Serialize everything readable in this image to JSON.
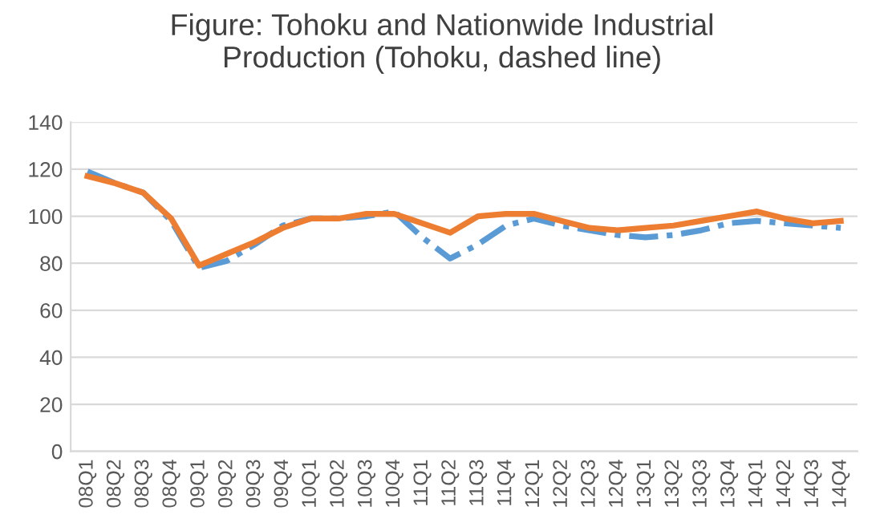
{
  "chart_data": {
    "type": "line",
    "title": "Figure: Tohoku and Nationwide Industrial\nProduction (Tohoku, dashed line)",
    "categories": [
      "08Q1",
      "08Q2",
      "08Q3",
      "08Q4",
      "09Q1",
      "09Q2",
      "09Q3",
      "09Q4",
      "10Q1",
      "10Q2",
      "10Q3",
      "10Q4",
      "11Q1",
      "11Q2",
      "11Q3",
      "11Q4",
      "12Q1",
      "12Q2",
      "12Q3",
      "12Q4",
      "13Q1",
      "13Q2",
      "13Q3",
      "13Q4",
      "14Q1",
      "14Q2",
      "14Q3",
      "14Q4"
    ],
    "series": [
      {
        "color": "#5b9bd5",
        "line_style": "dashdot",
        "values": [
          119,
          114,
          110,
          98,
          78,
          81,
          88,
          96,
          99,
          99,
          100,
          102,
          91,
          82,
          88,
          96,
          99,
          96,
          94,
          92,
          91,
          92,
          94,
          97,
          98,
          97,
          96,
          95
        ]
      },
      {
        "color": "#ed7d31",
        "line_style": "solid",
        "values": [
          117,
          114,
          110,
          99,
          79,
          84,
          89,
          95,
          99,
          99,
          101,
          101,
          97,
          93,
          100,
          101,
          101,
          98,
          95,
          94,
          95,
          96,
          98,
          100,
          102,
          99,
          97,
          98
        ]
      }
    ],
    "ylim": [
      0,
      140
    ],
    "yticks": [
      0,
      20,
      40,
      60,
      80,
      100,
      120,
      140
    ],
    "grid": "y",
    "legend": false
  }
}
